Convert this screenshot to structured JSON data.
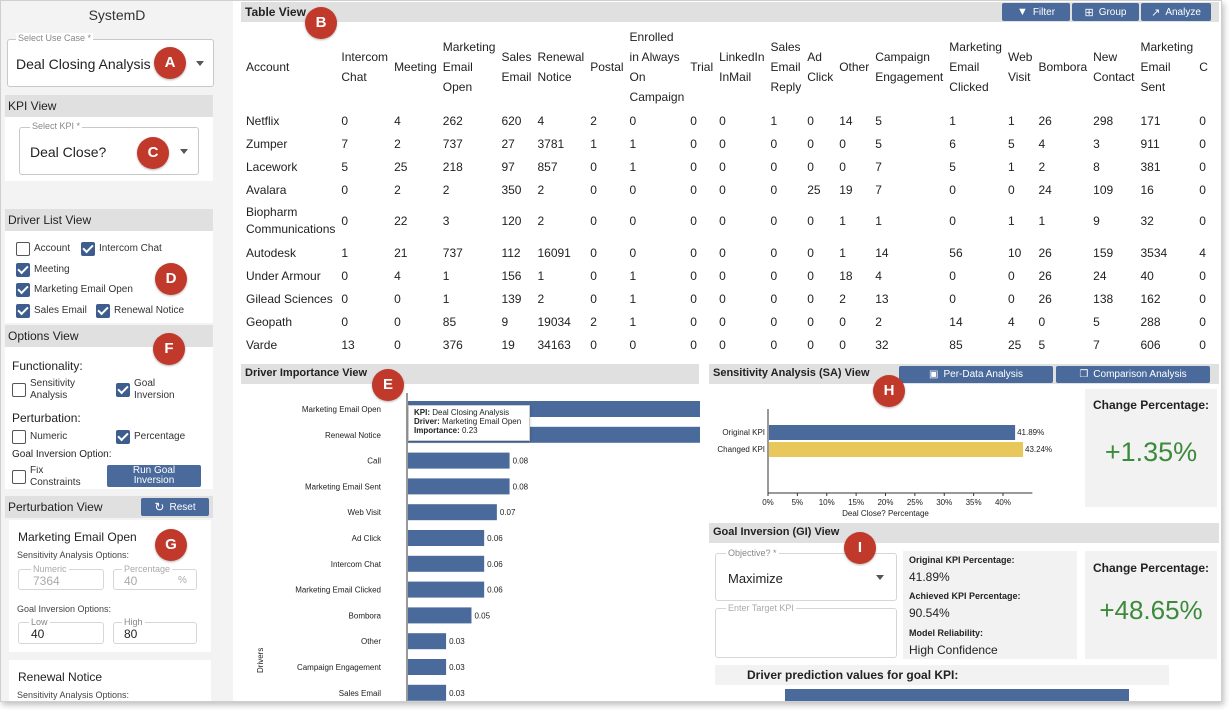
{
  "app": {
    "title": "SystemD"
  },
  "markers": {
    "A": "A",
    "B": "B",
    "C": "C",
    "D": "D",
    "E": "E",
    "F": "F",
    "G": "G",
    "H": "H",
    "I": "I"
  },
  "use_case": {
    "label": "Select Use Case *",
    "value": "Deal Closing Analysis"
  },
  "kpi_view": {
    "title": "KPI View",
    "label": "Select KPI *",
    "value": "Deal Close?"
  },
  "driver_list": {
    "title": "Driver List View",
    "items": [
      {
        "label": "Account",
        "checked": false
      },
      {
        "label": "Intercom Chat",
        "checked": true
      },
      {
        "label": "Meeting",
        "checked": true
      },
      {
        "label": "Marketing Email Open",
        "checked": true
      },
      {
        "label": "Sales Email",
        "checked": true
      },
      {
        "label": "Renewal Notice",
        "checked": true
      }
    ]
  },
  "options": {
    "title": "Options View",
    "functionality_label": "Functionality:",
    "sensitivity": {
      "label": "Sensitivity Analysis",
      "checked": false
    },
    "goal_inversion": {
      "label": "Goal Inversion",
      "checked": true
    },
    "perturbation_label": "Perturbation:",
    "numeric": {
      "label": "Numeric",
      "checked": false
    },
    "percentage": {
      "label": "Percentage",
      "checked": true
    },
    "gi_option_label": "Goal Inversion Option:",
    "fix_constraints": {
      "label": "Fix Constraints",
      "checked": false
    },
    "run_button": "Run Goal Inversion"
  },
  "perturbation": {
    "title": "Perturbation View",
    "reset": "Reset",
    "driver1": "Marketing Email Open",
    "sa_options": "Sensitivity Analysis Options:",
    "numeric_label": "Numeric",
    "numeric_value": "7364",
    "percentage_label": "Percentage",
    "percentage_value": "40",
    "pct_unit": "%",
    "gi_options": "Goal Inversion Options:",
    "low_label": "Low",
    "low_value": "40",
    "high_label": "High",
    "high_value": "80",
    "driver2": "Renewal Notice",
    "driver2_sub": "Sensitivity Analysis Options:"
  },
  "table_view": {
    "title": "Table View",
    "buttons": {
      "filter": "Filter",
      "group": "Group",
      "analyze": "Analyze"
    },
    "columns": [
      "Account",
      "Intercom\nChat",
      "Meeting",
      "Marketing\nEmail\nOpen",
      "Sales\nEmail",
      "Renewal\nNotice",
      "Postal",
      "Enrolled\nin Always\nOn\nCampaign",
      "Trial",
      "LinkedIn\nInMail",
      "Sales\nEmail\nReply",
      "Ad\nClick",
      "Other",
      "Campaign\nEngagement",
      "Marketing\nEmail\nClicked",
      "Web\nVisit",
      "Bombora",
      "New\nContact",
      "Marketing\nEmail\nSent",
      "C"
    ],
    "rows": [
      [
        "Netflix",
        "0",
        "4",
        "262",
        "620",
        "4",
        "2",
        "0",
        "0",
        "0",
        "1",
        "0",
        "14",
        "5",
        "1",
        "1",
        "26",
        "298",
        "171",
        "0"
      ],
      [
        "Zumper",
        "7",
        "2",
        "737",
        "27",
        "3781",
        "1",
        "1",
        "0",
        "0",
        "0",
        "0",
        "0",
        "5",
        "6",
        "5",
        "4",
        "3",
        "911",
        "0"
      ],
      [
        "Lacework",
        "5",
        "25",
        "218",
        "97",
        "857",
        "0",
        "1",
        "0",
        "0",
        "0",
        "0",
        "0",
        "7",
        "5",
        "1",
        "2",
        "8",
        "381",
        "0"
      ],
      [
        "Avalara",
        "0",
        "2",
        "2",
        "350",
        "2",
        "0",
        "0",
        "0",
        "0",
        "0",
        "25",
        "19",
        "7",
        "0",
        "0",
        "24",
        "109",
        "16",
        "0"
      ],
      [
        "Biopharm\nCommunications",
        "0",
        "22",
        "3",
        "120",
        "2",
        "0",
        "0",
        "0",
        "0",
        "0",
        "0",
        "1",
        "1",
        "0",
        "1",
        "1",
        "9",
        "32",
        "0"
      ],
      [
        "Autodesk",
        "1",
        "21",
        "737",
        "112",
        "16091",
        "0",
        "0",
        "0",
        "0",
        "0",
        "0",
        "1",
        "14",
        "56",
        "10",
        "26",
        "159",
        "3534",
        "4"
      ],
      [
        "Under Armour",
        "0",
        "4",
        "1",
        "156",
        "1",
        "0",
        "1",
        "0",
        "0",
        "0",
        "0",
        "18",
        "4",
        "0",
        "0",
        "26",
        "24",
        "40",
        "0"
      ],
      [
        "Gilead Sciences",
        "0",
        "0",
        "1",
        "139",
        "2",
        "0",
        "1",
        "0",
        "0",
        "0",
        "0",
        "2",
        "13",
        "0",
        "0",
        "26",
        "138",
        "162",
        "0"
      ],
      [
        "Geopath",
        "0",
        "0",
        "85",
        "9",
        "19034",
        "2",
        "1",
        "0",
        "0",
        "0",
        "0",
        "0",
        "2",
        "14",
        "4",
        "0",
        "5",
        "288",
        "0"
      ],
      [
        "Varde",
        "13",
        "0",
        "376",
        "19",
        "34163",
        "0",
        "0",
        "0",
        "0",
        "0",
        "0",
        "0",
        "32",
        "85",
        "25",
        "5",
        "7",
        "606",
        "0"
      ]
    ]
  },
  "driver_importance": {
    "title": "Driver Importance View",
    "ylabel": "Drivers",
    "tooltip": {
      "kpi_label": "KPI:",
      "kpi": "Deal Closing Analysis",
      "driver_label": "Driver:",
      "driver": "Marketing Email Open",
      "importance_label": "Importance:",
      "importance": "0.23"
    },
    "drivers": [
      {
        "name": "Marketing Email Open",
        "value": 0.23,
        "label": ""
      },
      {
        "name": "Renewal Notice",
        "value": 0.23,
        "label": ""
      },
      {
        "name": "Call",
        "value": 0.08,
        "label": "0.08"
      },
      {
        "name": "Marketing Email Sent",
        "value": 0.08,
        "label": "0.08"
      },
      {
        "name": "Web Visit",
        "value": 0.07,
        "label": "0.07"
      },
      {
        "name": "Ad Click",
        "value": 0.06,
        "label": "0.06"
      },
      {
        "name": "Intercom Chat",
        "value": 0.06,
        "label": "0.06"
      },
      {
        "name": "Marketing Email Clicked",
        "value": 0.06,
        "label": "0.06"
      },
      {
        "name": "Bombora",
        "value": 0.05,
        "label": "0.05"
      },
      {
        "name": "Other",
        "value": 0.03,
        "label": "0.03"
      },
      {
        "name": "Campaign Engagement",
        "value": 0.03,
        "label": "0.03"
      },
      {
        "name": "Sales Email",
        "value": 0.03,
        "label": "0.03"
      }
    ],
    "xmax": 0.23
  },
  "sensitivity": {
    "title": "Sensitivity Analysis (SA) View",
    "per_data_btn": "Per-Data Analysis",
    "comparison_btn": "Comparison Analysis",
    "xlabel": "Deal Close? Percentage",
    "ticks": [
      "0%",
      "5%",
      "10%",
      "15%",
      "20%",
      "25%",
      "30%",
      "35%",
      "40%"
    ],
    "bars": [
      {
        "name": "Original KPI",
        "value": 41.89,
        "label": "41.89%",
        "color": "#4a6a9b"
      },
      {
        "name": "Changed KPI",
        "value": 43.24,
        "label": "43.24%",
        "color": "#e8c85a"
      }
    ],
    "xmax": 43.5,
    "change_title": "Change Percentage:",
    "change_value": "+1.35%"
  },
  "goal_inversion": {
    "title": "Goal Inversion (GI) View",
    "objective_label": "Objective? *",
    "objective_value": "Maximize",
    "target_label": "Enter Target KPI",
    "orig_label": "Original KPI Percentage:",
    "orig_value": "41.89%",
    "achieved_label": "Achieved KPI Percentage:",
    "achieved_value": "90.54%",
    "reliability_label": "Model Reliability:",
    "reliability_value": "High Confidence",
    "change_title": "Change Percentage:",
    "change_value": "+48.65%",
    "prediction_title": "Driver prediction values for goal KPI:"
  },
  "colors": {
    "accent": "#4a6a9b",
    "marker": "#c0392b",
    "positive": "#3c8a3c",
    "changed": "#e8c85a"
  }
}
